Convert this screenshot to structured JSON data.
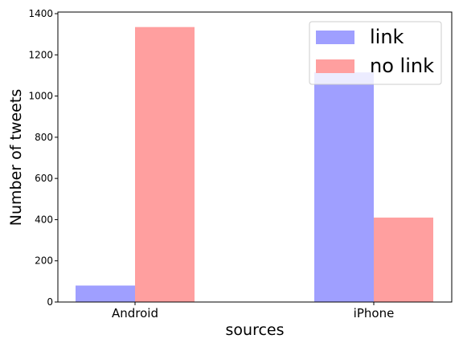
{
  "chart_data": {
    "type": "bar",
    "title": "",
    "xlabel": "sources",
    "ylabel": "Number of tweets",
    "categories": [
      "Android",
      "iPhone"
    ],
    "series": [
      {
        "name": "link",
        "values": [
          80,
          1115
        ],
        "color": "#9f9fff"
      },
      {
        "name": "no link",
        "values": [
          1335,
          410
        ],
        "color": "#ff9f9f"
      }
    ],
    "ylim": [
      0,
      1400
    ],
    "yticks": [
      0,
      200,
      400,
      600,
      800,
      1000,
      1200,
      1400
    ],
    "grid": false,
    "legend_position": "top-right"
  }
}
